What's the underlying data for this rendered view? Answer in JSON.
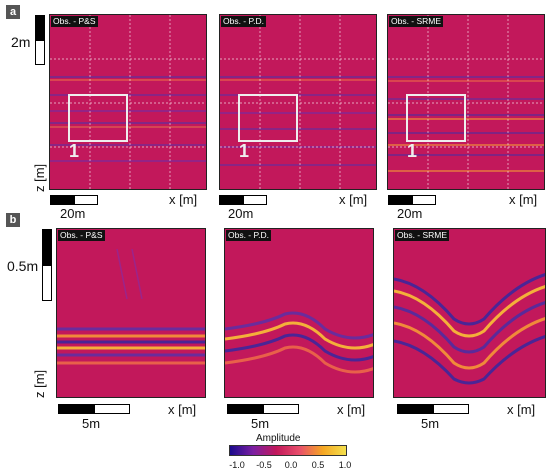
{
  "panel_a": {
    "letter": "a",
    "titles": [
      "Obs. - P&S",
      "Obs. - P.D.",
      "Obs. - SRME"
    ],
    "box_label": "1",
    "xlabel": "x [m]",
    "zlabel": "z [m]",
    "hscale": "20m",
    "vscale": "2m"
  },
  "panel_b": {
    "letter": "b",
    "titles": [
      "Obs. - P&S",
      "Obs. - P.D.",
      "Obs. - SRME"
    ],
    "xlabel": "x [m]",
    "zlabel": "z [m]",
    "hscale": "5m",
    "vscale": "0.5m"
  },
  "colorbar": {
    "title": "Amplitude",
    "ticks": [
      "-1.0",
      "-0.5",
      "0.0",
      "0.5",
      "1.0"
    ],
    "colors": [
      "#1a0a8c",
      "#7b1fa2",
      "#c2185b",
      "#e84f6b",
      "#f5a623",
      "#f4e04d"
    ]
  }
}
